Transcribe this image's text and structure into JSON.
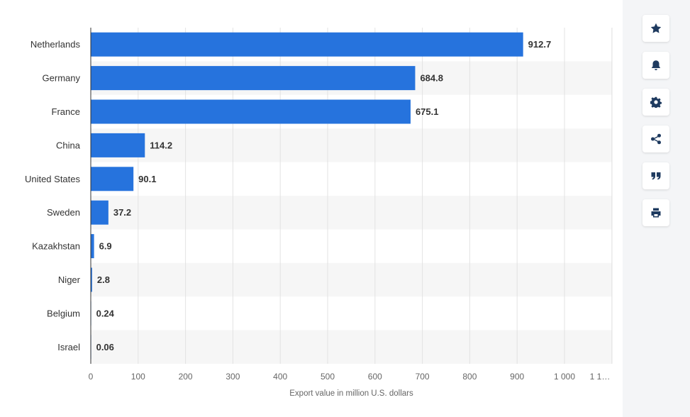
{
  "chart_data": {
    "type": "bar",
    "orientation": "horizontal",
    "categories": [
      "Netherlands",
      "Germany",
      "France",
      "China",
      "United States",
      "Sweden",
      "Kazakhstan",
      "Niger",
      "Belgium",
      "Israel"
    ],
    "values": [
      912.7,
      684.8,
      675.1,
      114.2,
      90.1,
      37.2,
      6.9,
      2.8,
      0.24,
      0.06
    ],
    "value_labels": [
      "912.7",
      "684.8",
      "675.1",
      "114.2",
      "90.1",
      "37.2",
      "6.9",
      "2.8",
      "0.24",
      "0.06"
    ],
    "xlabel": "Export value in million U.S. dollars",
    "ylabel": "",
    "xlim": [
      0,
      1100
    ],
    "xticks": [
      0,
      100,
      200,
      300,
      400,
      500,
      600,
      700,
      800,
      900,
      1000,
      1100
    ],
    "xtick_labels": [
      "0",
      "100",
      "200",
      "300",
      "400",
      "500",
      "600",
      "700",
      "800",
      "900",
      "1 000",
      "1 1…"
    ],
    "grid": "vertical",
    "bar_color": "#2673dd",
    "alt_row_color": "#f6f6f6"
  },
  "toolbar": {
    "items": [
      {
        "name": "favorite-button",
        "icon": "star-icon"
      },
      {
        "name": "notification-button",
        "icon": "bell-icon"
      },
      {
        "name": "settings-button",
        "icon": "gear-icon"
      },
      {
        "name": "share-button",
        "icon": "share-icon"
      },
      {
        "name": "cite-button",
        "icon": "quote-icon"
      },
      {
        "name": "print-button",
        "icon": "printer-icon"
      }
    ]
  }
}
